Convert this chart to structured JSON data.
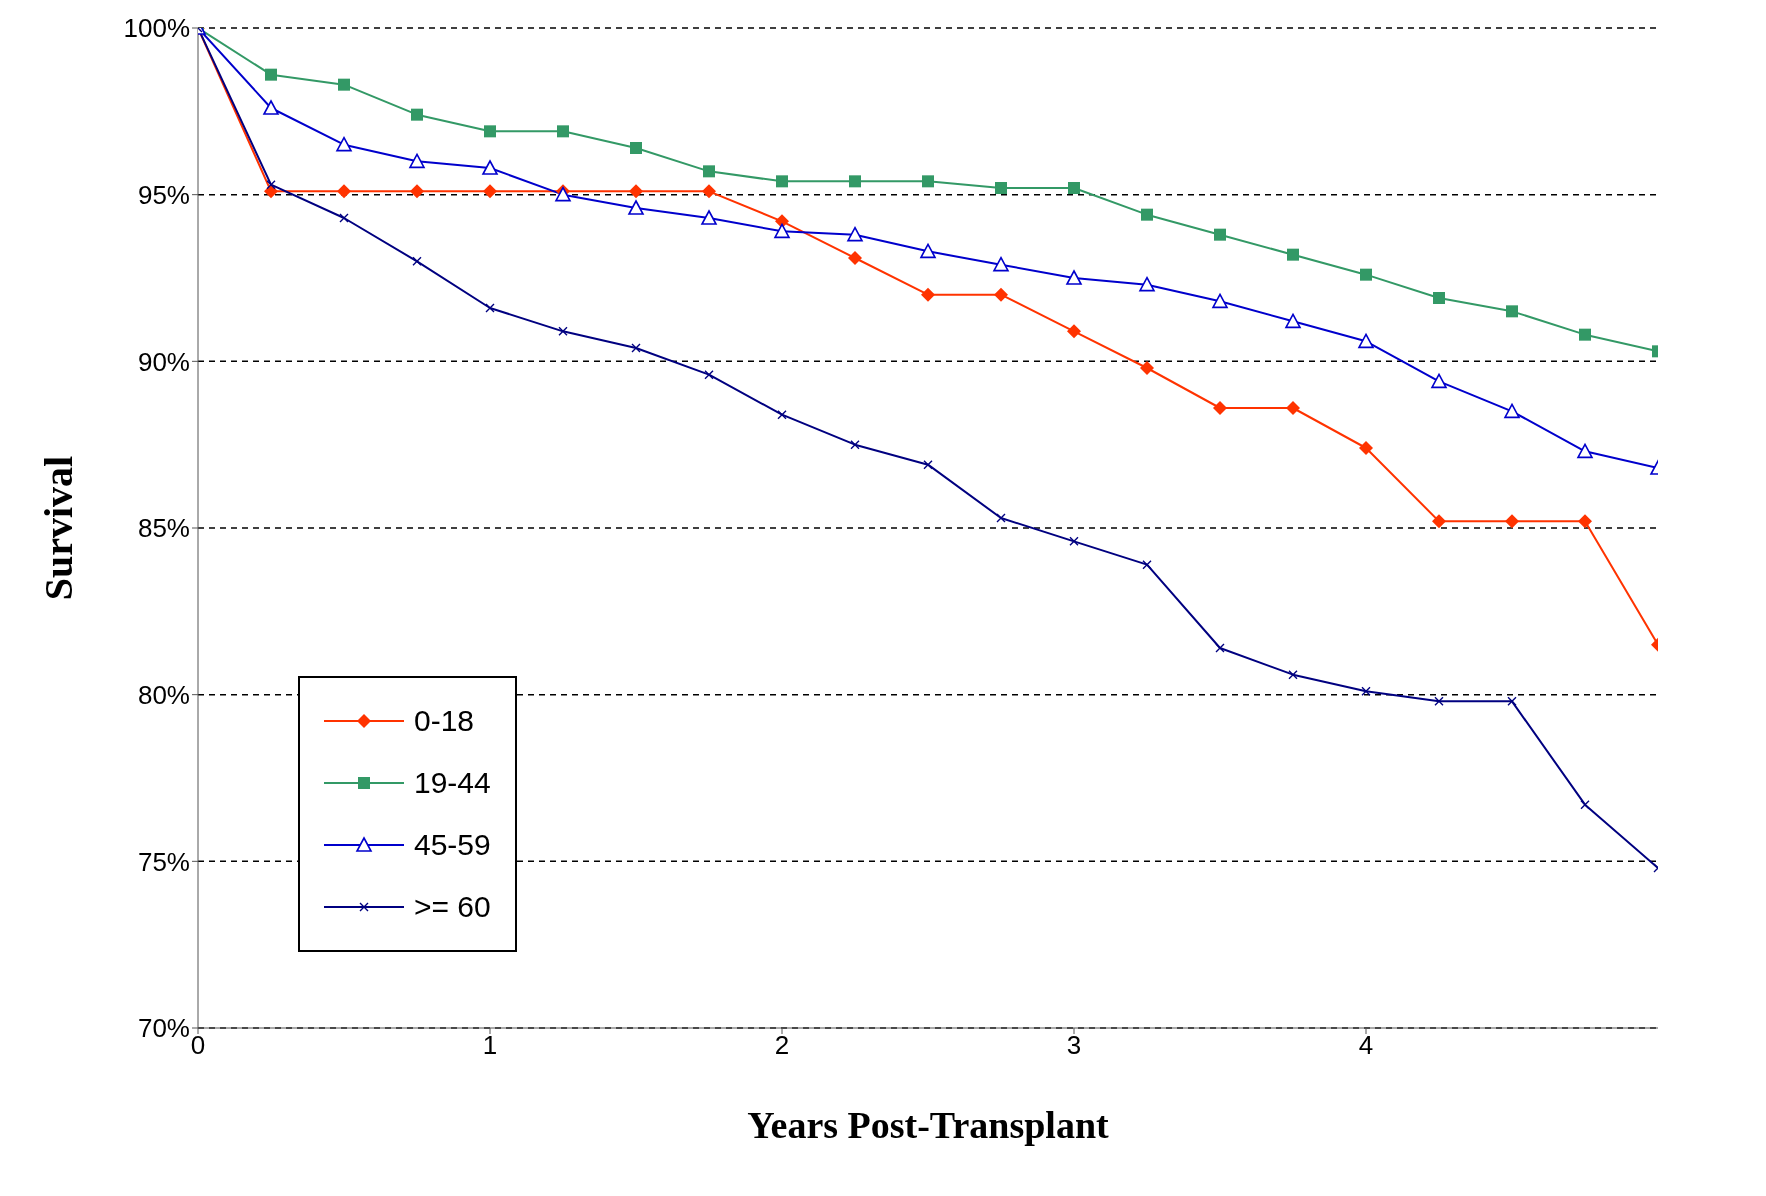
{
  "chart_data": {
    "type": "line",
    "xlabel": "Years Post-Transplant",
    "ylabel": "Survival",
    "x": [
      0,
      0.25,
      0.5,
      0.75,
      1,
      1.25,
      1.5,
      1.75,
      2,
      2.25,
      2.5,
      2.75,
      3,
      3.25,
      3.5,
      3.75,
      4,
      4.25,
      4.5,
      4.75,
      5
    ],
    "series": [
      {
        "name": "0-18",
        "color": "#ff3300",
        "marker": "diamond",
        "values": [
          100,
          95.1,
          95.1,
          95.1,
          95.1,
          95.1,
          95.1,
          95.1,
          94.2,
          93.1,
          92.0,
          92.0,
          90.9,
          89.8,
          88.6,
          88.6,
          87.4,
          85.2,
          85.2,
          85.2,
          81.5
        ]
      },
      {
        "name": "19-44",
        "color": "#339966",
        "marker": "square",
        "values": [
          100,
          98.6,
          98.3,
          97.4,
          96.9,
          96.9,
          96.4,
          95.7,
          95.4,
          95.4,
          95.4,
          95.2,
          95.2,
          94.4,
          93.8,
          93.2,
          92.6,
          91.9,
          91.5,
          90.8,
          90.3
        ]
      },
      {
        "name": "45-59",
        "color": "#0000cc",
        "marker": "triangle",
        "values": [
          100,
          97.6,
          96.5,
          96.0,
          95.8,
          95.0,
          94.6,
          94.3,
          93.9,
          93.8,
          93.3,
          92.9,
          92.5,
          92.3,
          91.8,
          91.2,
          90.6,
          89.4,
          88.5,
          87.3,
          86.8
        ]
      },
      {
        "name": ">= 60",
        "color": "#000080",
        "marker": "cross",
        "values": [
          100,
          95.3,
          94.3,
          93.0,
          91.6,
          90.9,
          90.4,
          89.6,
          88.4,
          87.5,
          86.9,
          85.3,
          84.6,
          83.9,
          81.4,
          80.6,
          80.1,
          79.8,
          79.8,
          76.7,
          74.8
        ]
      }
    ],
    "xlim": [
      0,
      5
    ],
    "xticks": [
      0,
      1,
      2,
      3,
      4
    ],
    "ylim": [
      70,
      100
    ],
    "yticks": [
      {
        "value": 70,
        "label": "70%"
      },
      {
        "value": 75,
        "label": "75%"
      },
      {
        "value": 80,
        "label": "80%"
      },
      {
        "value": 85,
        "label": "85%"
      },
      {
        "value": 90,
        "label": "90%"
      },
      {
        "value": 95,
        "label": "95%"
      },
      {
        "value": 100,
        "label": "100%"
      }
    ],
    "grid": "y",
    "legend": "bottom left",
    "line_style": "solid"
  }
}
